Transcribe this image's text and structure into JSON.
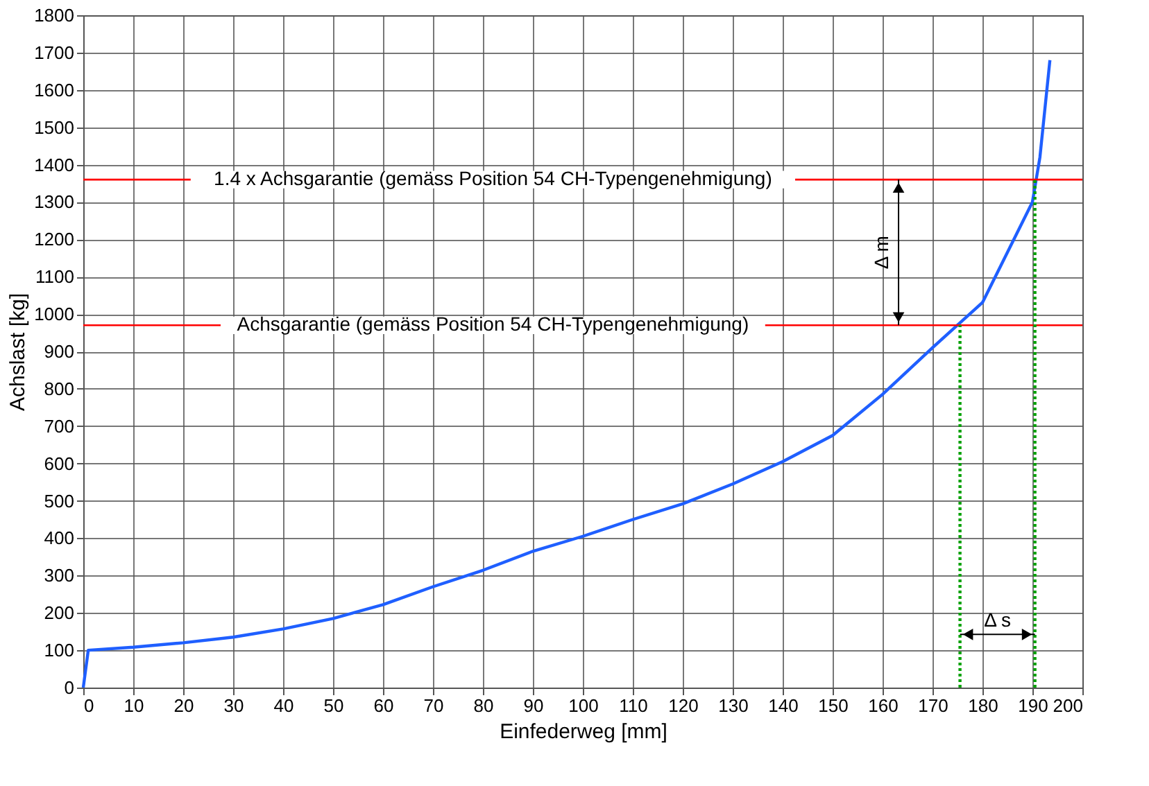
{
  "chart_data": {
    "type": "line",
    "xlabel": "Einfederweg [mm]",
    "ylabel": "Achslast [kg]",
    "x": [
      0,
      1,
      10,
      20,
      30,
      40,
      50,
      60,
      70,
      80,
      90,
      100,
      110,
      120,
      130,
      140,
      150,
      160,
      170,
      180,
      190,
      191.5,
      192.5,
      193.5
    ],
    "series": [
      {
        "color": "#1f5fff",
        "values": [
          0,
          100,
          108,
          120,
          135,
          157,
          185,
          222,
          270,
          314,
          365,
          405,
          450,
          492,
          545,
          605,
          675,
          785,
          910,
          1031,
          1300,
          1420,
          1550,
          1680
        ]
      }
    ],
    "xlim": [
      0,
      200
    ],
    "ylim": [
      0,
      1800
    ],
    "xticks": [
      0,
      10,
      20,
      30,
      40,
      50,
      60,
      70,
      80,
      90,
      100,
      110,
      120,
      130,
      140,
      150,
      160,
      170,
      180,
      190,
      200
    ],
    "yticks": [
      0,
      100,
      200,
      300,
      400,
      500,
      600,
      700,
      800,
      900,
      1000,
      1100,
      1200,
      1300,
      1400,
      1500,
      1600,
      1700,
      1800
    ],
    "grid": true,
    "marker": "none",
    "line_style": "solid",
    "ref_lines": [
      {
        "axis": "y",
        "value": 970,
        "label": "Achsgarantie (gemäss Position 54 CH-Typengenehmigung)",
        "color": "#ff0000"
      },
      {
        "axis": "y",
        "value": 1360,
        "label": "1.4 x Achsgarantie (gemäss Position 54 CH-Typengenehmigung)",
        "color": "#ff0000"
      },
      {
        "axis": "x",
        "value": 175.5,
        "color": "#00a000",
        "line_style": "dotted"
      },
      {
        "axis": "x",
        "value": 190.5,
        "color": "#00a000",
        "line_style": "dotted"
      }
    ],
    "annotations": [
      "Δ m",
      "Δ s"
    ]
  }
}
